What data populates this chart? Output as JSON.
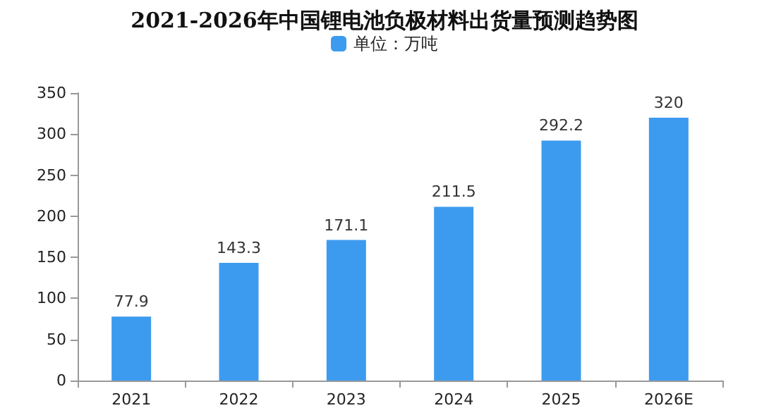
{
  "chart_data": {
    "type": "bar",
    "title": "2021-2026年中国锂电池负极材料出货量预测趋势图",
    "categories": [
      "2021",
      "2022",
      "2023",
      "2024",
      "2025",
      "2026E"
    ],
    "series": [
      {
        "name": "单位：万吨",
        "color": "#3c9bef",
        "values": [
          77.9,
          143.3,
          171.1,
          211.5,
          292.2,
          320
        ]
      }
    ],
    "ylim": [
      0,
      350
    ],
    "yticks": [
      0,
      50,
      100,
      150,
      200,
      250,
      300,
      350
    ],
    "grid": false,
    "legend": "top",
    "data_labels": true
  }
}
